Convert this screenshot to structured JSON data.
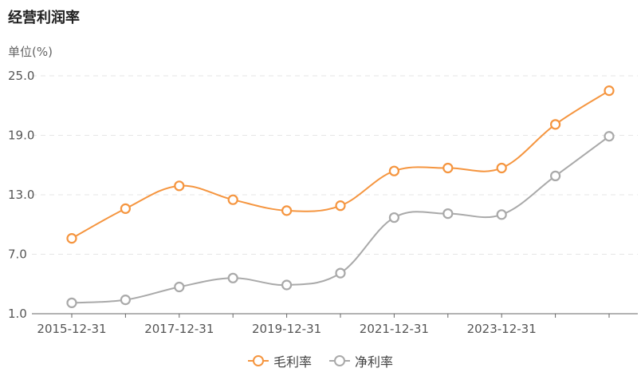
{
  "title": "经营利润率",
  "unit_label": "单位(%)",
  "colors": {
    "gross": "#f5953f",
    "net": "#a9a9a9",
    "grid": "#e6e6e6",
    "axis": "#666666"
  },
  "chart_data": {
    "type": "line",
    "title": "经营利润率",
    "ylabel": "单位(%)",
    "ylim": [
      1.0,
      25.0
    ],
    "yticks": [
      "1.0",
      "7.0",
      "13.0",
      "19.0",
      "25.0"
    ],
    "categories": [
      "2015-12-31",
      "2016-12-31",
      "2017-12-31",
      "2018-12-31",
      "2019-12-31",
      "2020-12-31",
      "2021-12-31",
      "2022-12-31",
      "2023-12-31",
      "2024-12-31",
      "2025-12-31"
    ],
    "x_tick_labels": [
      "2015-12-31",
      "",
      "2017-12-31",
      "",
      "2019-12-31",
      "",
      "2021-12-31",
      "",
      "2023-12-31",
      "",
      ""
    ],
    "series": [
      {
        "name": "毛利率",
        "values": [
          8.6,
          11.6,
          13.9,
          12.5,
          11.4,
          11.9,
          15.4,
          15.7,
          15.7,
          20.1,
          23.5
        ]
      },
      {
        "name": "净利率",
        "values": [
          2.1,
          2.4,
          3.7,
          4.6,
          3.9,
          5.1,
          10.7,
          11.1,
          11.0,
          14.9,
          18.9
        ]
      }
    ],
    "grid": true,
    "legend_position": "bottom-center"
  }
}
